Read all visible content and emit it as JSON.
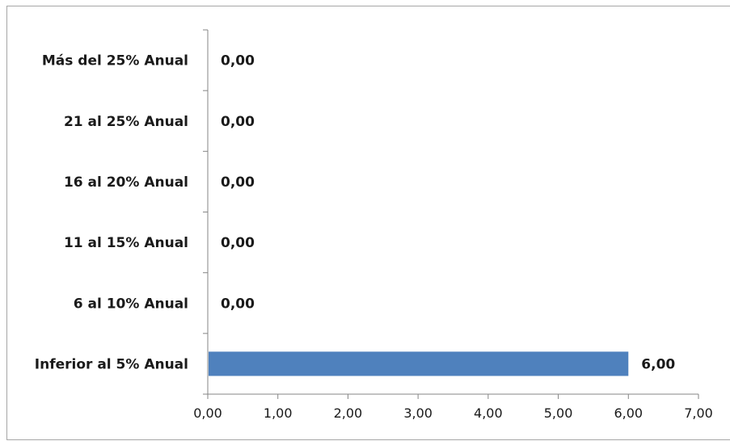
{
  "chart_data": {
    "type": "bar",
    "orientation": "horizontal",
    "title": "",
    "xlabel": "",
    "ylabel": "",
    "categories": [
      "Inferior al 5% Anual",
      "6 al 10% Anual",
      "11 al 15% Anual",
      "16 al 20% Anual",
      "21 al 25% Anual",
      "Más del 25% Anual"
    ],
    "values": [
      6,
      0,
      0,
      0,
      0,
      0
    ],
    "data_labels": [
      "6,00",
      "0,00",
      "0,00",
      "0,00",
      "0,00",
      "0,00"
    ],
    "xlim": [
      0,
      7
    ],
    "x_ticks": [
      0,
      1,
      2,
      3,
      4,
      5,
      6,
      7
    ],
    "x_tick_labels": [
      "0,00",
      "1,00",
      "2,00",
      "3,00",
      "4,00",
      "5,00",
      "6,00",
      "7,00"
    ],
    "grid": false,
    "legend": "none",
    "bar_color": "#4f81bd",
    "axis_color": "#868686"
  }
}
